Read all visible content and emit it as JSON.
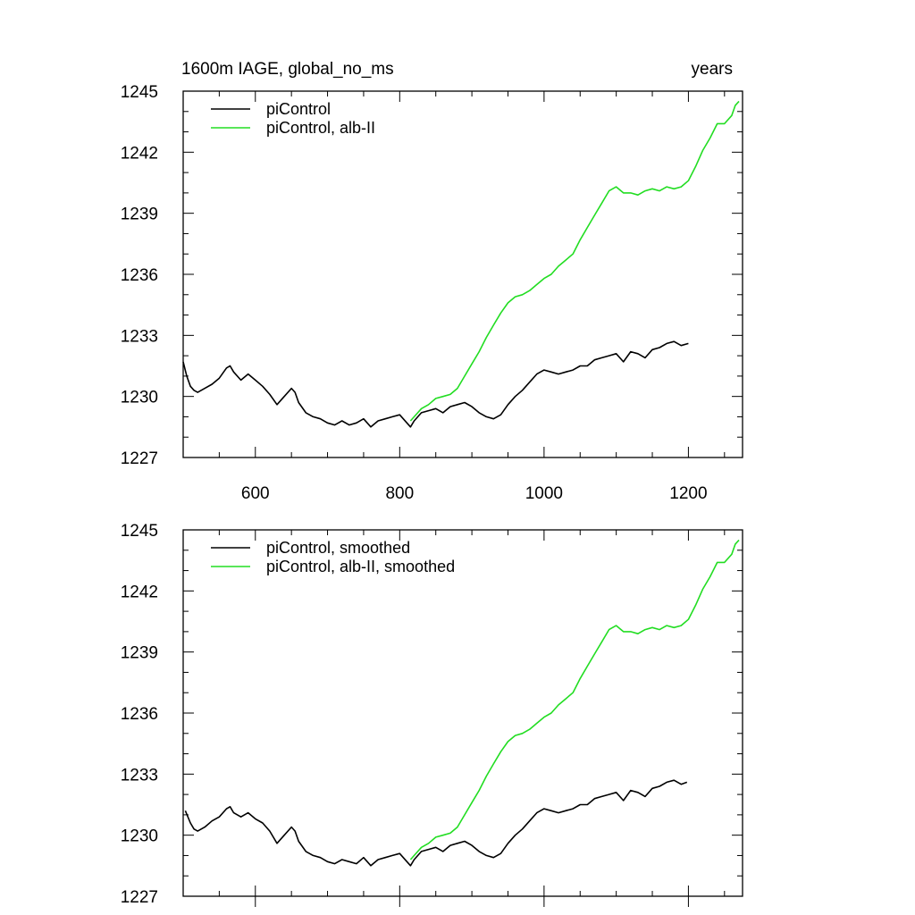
{
  "chart_data": [
    {
      "type": "line",
      "title": "1600m IAGE, global_no_ms",
      "right_title": "years",
      "xlabel": "",
      "ylabel": "",
      "xlim": [
        500,
        1275
      ],
      "ylim": [
        1227,
        1245
      ],
      "yticks": [
        1227,
        1230,
        1233,
        1236,
        1239,
        1242,
        1245
      ],
      "xticks": [
        600,
        800,
        1000,
        1200
      ],
      "xtick_labels": [
        "600",
        "800",
        "1000",
        "1200"
      ],
      "legend_position": "top-left",
      "series": [
        {
          "name": "piControl",
          "color": "#000000",
          "x": [
            500,
            505,
            510,
            515,
            520,
            530,
            540,
            550,
            560,
            565,
            570,
            580,
            590,
            600,
            610,
            620,
            630,
            640,
            650,
            655,
            660,
            670,
            680,
            690,
            700,
            710,
            720,
            730,
            740,
            750,
            760,
            770,
            780,
            790,
            800,
            810,
            815,
            820,
            830,
            840,
            850,
            860,
            870,
            880,
            890,
            900,
            910,
            920,
            930,
            940,
            950,
            960,
            970,
            980,
            990,
            1000,
            1010,
            1020,
            1030,
            1040,
            1050,
            1060,
            1070,
            1080,
            1090,
            1100,
            1110,
            1120,
            1130,
            1140,
            1150,
            1160,
            1170,
            1180,
            1190,
            1200
          ],
          "values": [
            1231.7,
            1231.0,
            1230.5,
            1230.3,
            1230.2,
            1230.4,
            1230.6,
            1230.9,
            1231.4,
            1231.5,
            1231.2,
            1230.8,
            1231.1,
            1230.8,
            1230.5,
            1230.1,
            1229.6,
            1230.0,
            1230.4,
            1230.2,
            1229.7,
            1229.2,
            1229.0,
            1228.9,
            1228.7,
            1228.6,
            1228.8,
            1228.6,
            1228.7,
            1228.9,
            1228.5,
            1228.8,
            1228.9,
            1229.0,
            1229.1,
            1228.7,
            1228.5,
            1228.8,
            1229.2,
            1229.3,
            1229.4,
            1229.2,
            1229.5,
            1229.6,
            1229.7,
            1229.5,
            1229.2,
            1229.0,
            1228.9,
            1229.1,
            1229.6,
            1230.0,
            1230.3,
            1230.7,
            1231.1,
            1231.3,
            1231.2,
            1231.1,
            1231.2,
            1231.3,
            1231.5,
            1231.5,
            1231.8,
            1231.9,
            1232.0,
            1232.1,
            1231.7,
            1232.2,
            1232.1,
            1231.9,
            1232.3,
            1232.4,
            1232.6,
            1232.7,
            1232.5,
            1232.6
          ]
        },
        {
          "name": "piControl, alb-II",
          "color": "#22dd22",
          "x": [
            815,
            820,
            830,
            840,
            850,
            860,
            870,
            880,
            890,
            900,
            910,
            920,
            930,
            940,
            950,
            960,
            970,
            980,
            990,
            1000,
            1010,
            1020,
            1030,
            1040,
            1050,
            1060,
            1070,
            1080,
            1090,
            1100,
            1110,
            1120,
            1130,
            1140,
            1150,
            1160,
            1170,
            1180,
            1190,
            1200,
            1210,
            1220,
            1230,
            1240,
            1250,
            1260,
            1265,
            1270
          ],
          "values": [
            1228.8,
            1229.0,
            1229.4,
            1229.6,
            1229.9,
            1230.0,
            1230.1,
            1230.4,
            1231.0,
            1231.6,
            1232.2,
            1232.9,
            1233.5,
            1234.1,
            1234.6,
            1234.9,
            1235.0,
            1235.2,
            1235.5,
            1235.8,
            1236.0,
            1236.4,
            1236.7,
            1237.0,
            1237.7,
            1238.3,
            1238.9,
            1239.5,
            1240.1,
            1240.3,
            1240.0,
            1240.0,
            1239.9,
            1240.1,
            1240.2,
            1240.1,
            1240.3,
            1240.2,
            1240.3,
            1240.6,
            1241.3,
            1242.1,
            1242.7,
            1243.4,
            1243.4,
            1243.8,
            1244.3,
            1244.5
          ]
        }
      ]
    },
    {
      "type": "line",
      "title": "",
      "xlabel": "",
      "ylabel": "",
      "xlim": [
        500,
        1275
      ],
      "ylim": [
        1227,
        1245
      ],
      "yticks": [
        1227,
        1230,
        1233,
        1236,
        1239,
        1242,
        1245
      ],
      "xticks": [
        600,
        800,
        1000,
        1200
      ],
      "legend_position": "top-left",
      "series": [
        {
          "name": "piControl, smoothed",
          "color": "#000000",
          "x": [
            503,
            510,
            515,
            520,
            530,
            540,
            550,
            560,
            565,
            570,
            580,
            590,
            600,
            610,
            620,
            630,
            640,
            650,
            655,
            660,
            670,
            680,
            690,
            700,
            710,
            720,
            730,
            740,
            750,
            760,
            770,
            780,
            790,
            800,
            810,
            815,
            820,
            830,
            840,
            850,
            860,
            870,
            880,
            890,
            900,
            910,
            920,
            930,
            940,
            950,
            960,
            970,
            980,
            990,
            1000,
            1010,
            1020,
            1030,
            1040,
            1050,
            1060,
            1070,
            1080,
            1090,
            1100,
            1110,
            1120,
            1130,
            1140,
            1150,
            1160,
            1170,
            1180,
            1190,
            1198
          ],
          "values": [
            1231.2,
            1230.6,
            1230.3,
            1230.2,
            1230.4,
            1230.7,
            1230.9,
            1231.3,
            1231.4,
            1231.1,
            1230.9,
            1231.1,
            1230.8,
            1230.6,
            1230.2,
            1229.6,
            1230.0,
            1230.4,
            1230.2,
            1229.7,
            1229.2,
            1229.0,
            1228.9,
            1228.7,
            1228.6,
            1228.8,
            1228.7,
            1228.6,
            1228.9,
            1228.5,
            1228.8,
            1228.9,
            1229.0,
            1229.1,
            1228.7,
            1228.5,
            1228.8,
            1229.2,
            1229.3,
            1229.4,
            1229.2,
            1229.5,
            1229.6,
            1229.7,
            1229.5,
            1229.2,
            1229.0,
            1228.9,
            1229.1,
            1229.6,
            1230.0,
            1230.3,
            1230.7,
            1231.1,
            1231.3,
            1231.2,
            1231.1,
            1231.2,
            1231.3,
            1231.5,
            1231.5,
            1231.8,
            1231.9,
            1232.0,
            1232.1,
            1231.7,
            1232.2,
            1232.1,
            1231.9,
            1232.3,
            1232.4,
            1232.6,
            1232.7,
            1232.5,
            1232.6
          ]
        },
        {
          "name": "piControl, alb-II, smoothed",
          "color": "#22dd22",
          "x": [
            815,
            820,
            830,
            840,
            850,
            860,
            870,
            880,
            890,
            900,
            910,
            920,
            930,
            940,
            950,
            960,
            970,
            980,
            990,
            1000,
            1010,
            1020,
            1030,
            1040,
            1050,
            1060,
            1070,
            1080,
            1090,
            1100,
            1110,
            1120,
            1130,
            1140,
            1150,
            1160,
            1170,
            1180,
            1190,
            1200,
            1210,
            1220,
            1230,
            1240,
            1250,
            1260,
            1265,
            1270
          ],
          "values": [
            1228.8,
            1229.0,
            1229.4,
            1229.6,
            1229.9,
            1230.0,
            1230.1,
            1230.4,
            1231.0,
            1231.6,
            1232.2,
            1232.9,
            1233.5,
            1234.1,
            1234.6,
            1234.9,
            1235.0,
            1235.2,
            1235.5,
            1235.8,
            1236.0,
            1236.4,
            1236.7,
            1237.0,
            1237.7,
            1238.3,
            1238.9,
            1239.5,
            1240.1,
            1240.3,
            1240.0,
            1240.0,
            1239.9,
            1240.1,
            1240.2,
            1240.1,
            1240.3,
            1240.2,
            1240.3,
            1240.6,
            1241.3,
            1242.1,
            1242.7,
            1243.4,
            1243.4,
            1243.8,
            1244.3,
            1244.5
          ]
        }
      ]
    }
  ]
}
